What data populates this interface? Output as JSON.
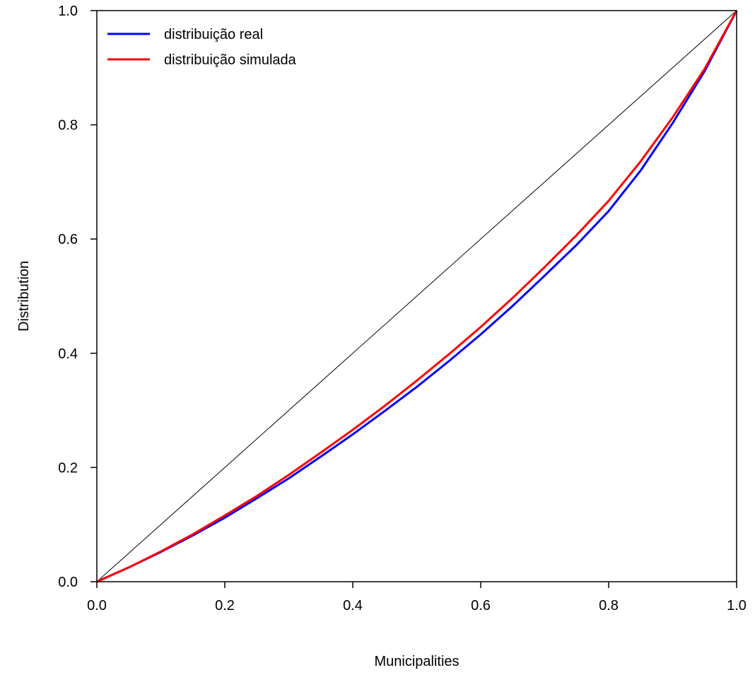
{
  "chart_data": {
    "type": "line",
    "title": "",
    "xlabel": "Municipalities",
    "ylabel": "Distribution",
    "xlim": [
      0,
      1
    ],
    "ylim": [
      0,
      1
    ],
    "x_ticks": [
      "0.0",
      "0.2",
      "0.4",
      "0.6",
      "0.8",
      "1.0"
    ],
    "y_ticks": [
      "0.0",
      "0.2",
      "0.4",
      "0.6",
      "0.8",
      "1.0"
    ],
    "grid": false,
    "legend_position": "top-left",
    "reference_line": {
      "x": [
        0,
        1
      ],
      "y": [
        0,
        1
      ],
      "color": "#000000"
    },
    "series": [
      {
        "name": "distribuição real",
        "color": "#0000ff",
        "x": [
          0,
          0.05,
          0.1,
          0.15,
          0.2,
          0.25,
          0.3,
          0.35,
          0.4,
          0.45,
          0.5,
          0.55,
          0.6,
          0.65,
          0.7,
          0.75,
          0.8,
          0.85,
          0.9,
          0.95,
          1.0
        ],
        "y": [
          0,
          0.025,
          0.052,
          0.081,
          0.112,
          0.146,
          0.181,
          0.219,
          0.258,
          0.299,
          0.341,
          0.386,
          0.433,
          0.483,
          0.536,
          0.59,
          0.649,
          0.72,
          0.803,
          0.894,
          1.0
        ]
      },
      {
        "name": "distribuição simulada",
        "color": "#ff0000",
        "x": [
          0,
          0.05,
          0.1,
          0.15,
          0.2,
          0.25,
          0.3,
          0.35,
          0.4,
          0.45,
          0.5,
          0.55,
          0.6,
          0.65,
          0.7,
          0.75,
          0.8,
          0.85,
          0.9,
          0.95,
          1.0
        ],
        "y": [
          0,
          0.025,
          0.053,
          0.083,
          0.116,
          0.15,
          0.187,
          0.226,
          0.266,
          0.308,
          0.352,
          0.398,
          0.446,
          0.497,
          0.551,
          0.607,
          0.667,
          0.736,
          0.813,
          0.898,
          1.0
        ]
      }
    ]
  }
}
